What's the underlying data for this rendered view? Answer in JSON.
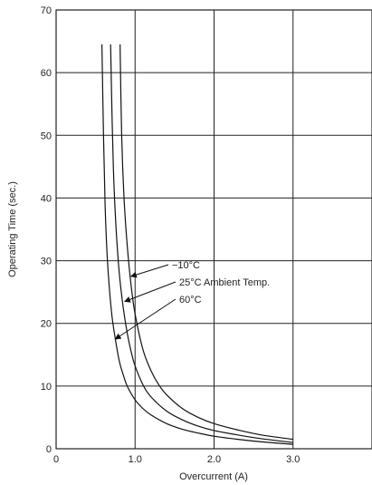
{
  "chart_data": {
    "type": "line",
    "xlabel": "Overcurrent (A)",
    "ylabel": "Operating Time (sec.)",
    "xlim": [
      0,
      4
    ],
    "ylim": [
      0,
      70
    ],
    "xticks": [
      0,
      1,
      2,
      3
    ],
    "xtick_labels": [
      "0",
      "1.0",
      "2.0",
      "3.0"
    ],
    "yticks": [
      0,
      10,
      20,
      30,
      40,
      50,
      60,
      70
    ],
    "ytick_labels": [
      "0",
      "10",
      "20",
      "30",
      "40",
      "50",
      "60",
      "70"
    ],
    "grid": true,
    "series": [
      {
        "name": "60°C",
        "x": [
          0.58,
          0.6,
          0.62,
          0.65,
          0.7,
          0.75,
          0.8,
          0.85,
          0.9,
          1.0,
          1.1,
          1.2,
          1.4,
          1.6,
          1.8,
          2.0,
          2.3,
          2.6,
          3.0
        ],
        "y": [
          64.5,
          50,
          39,
          30,
          22,
          17.5,
          14,
          11.8,
          10,
          7.8,
          6.4,
          5.4,
          4.0,
          3.1,
          2.5,
          2.0,
          1.5,
          1.1,
          0.7
        ]
      },
      {
        "name": "25°C Ambient Temp.",
        "x": [
          0.69,
          0.71,
          0.73,
          0.76,
          0.8,
          0.85,
          0.9,
          0.95,
          1.0,
          1.1,
          1.2,
          1.4,
          1.6,
          1.8,
          2.0,
          2.3,
          2.6,
          3.0
        ],
        "y": [
          64.5,
          52,
          43,
          35,
          28,
          22.5,
          18.5,
          15.5,
          13.2,
          10.2,
          8.3,
          6.0,
          4.6,
          3.6,
          2.9,
          2.2,
          1.6,
          1.0
        ]
      },
      {
        "name": "−10°C",
        "x": [
          0.81,
          0.83,
          0.86,
          0.9,
          0.95,
          1.0,
          1.1,
          1.2,
          1.3,
          1.4,
          1.6,
          1.8,
          2.0,
          2.3,
          2.6,
          3.0
        ],
        "y": [
          64.5,
          50,
          40,
          32.5,
          26,
          21.5,
          15.8,
          12.5,
          10.2,
          8.6,
          6.4,
          5.0,
          4.0,
          3.0,
          2.2,
          1.5
        ]
      }
    ],
    "annotations": [
      {
        "text": "−10°C",
        "series": "−10°C",
        "point": [
          0.95,
          27.5
        ]
      },
      {
        "text": "25°C Ambient Temp.",
        "series": "25°C Ambient Temp.",
        "point": [
          0.87,
          23.5
        ]
      },
      {
        "text": "60°C",
        "series": "60°C",
        "point": [
          0.75,
          17.5
        ]
      }
    ]
  }
}
